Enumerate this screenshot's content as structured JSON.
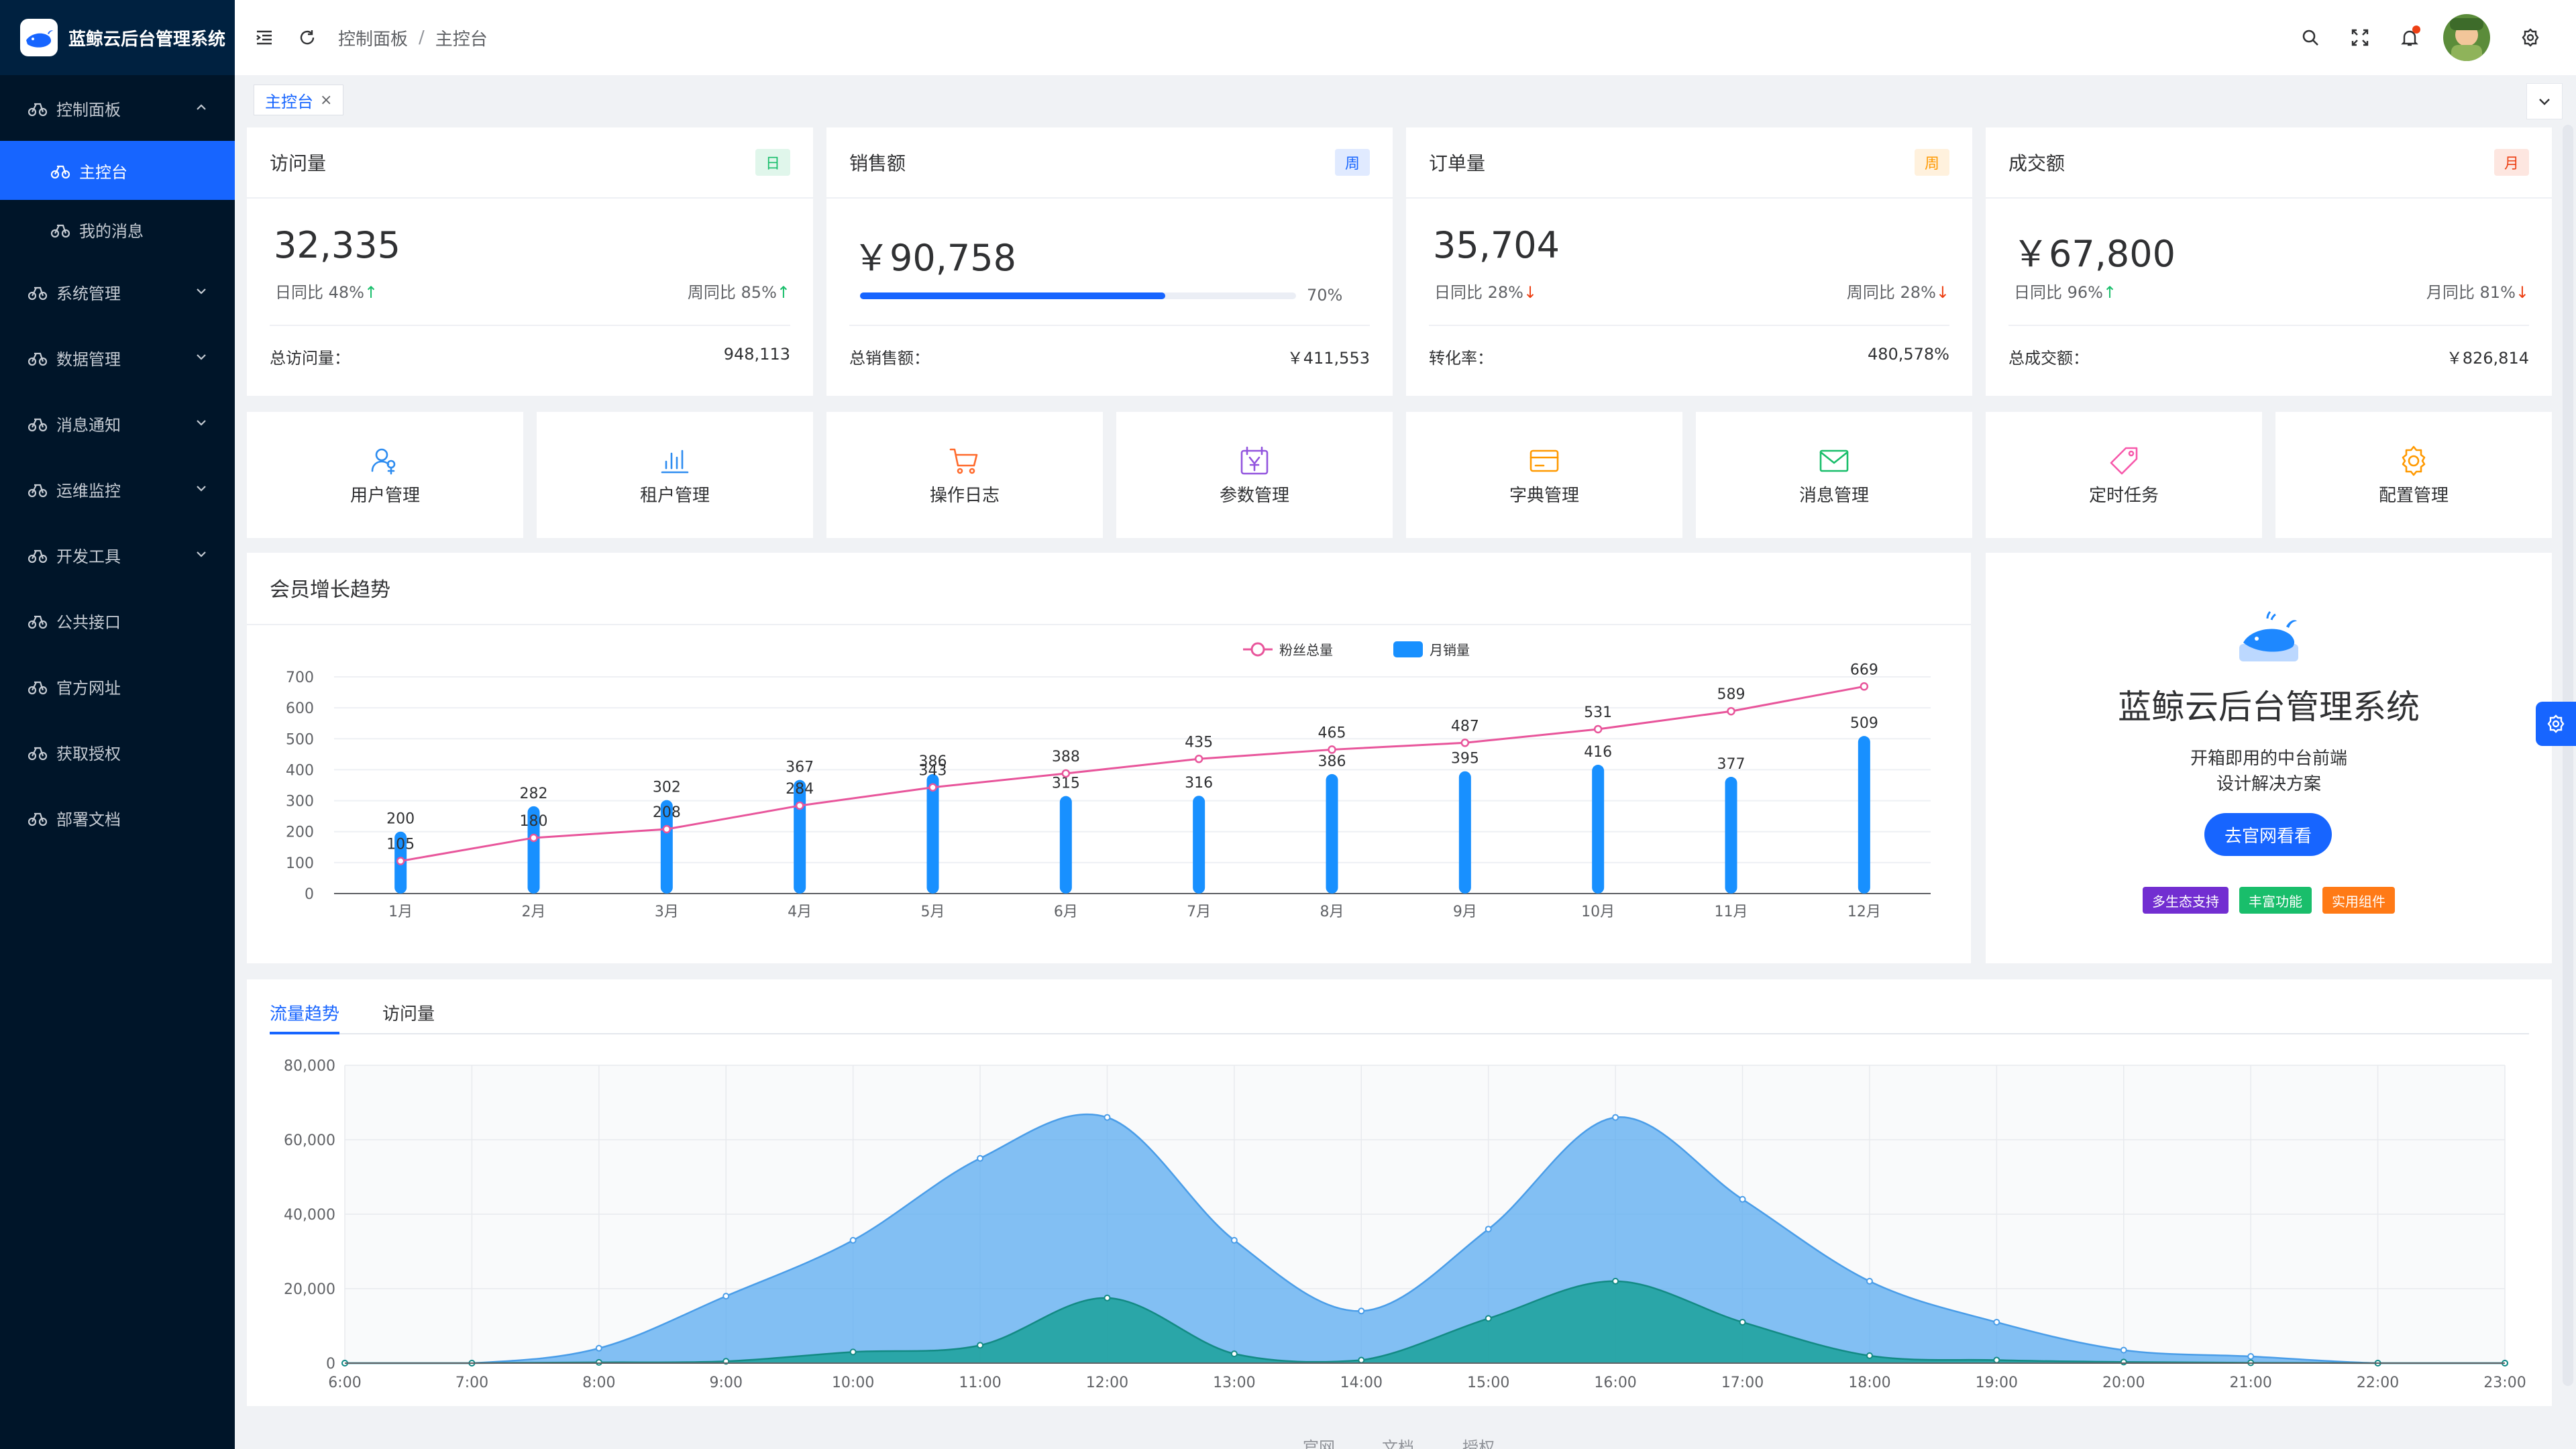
{
  "app": {
    "title": "蓝鲸云后台管理系统"
  },
  "sidebar": {
    "items": [
      {
        "label": "控制面板",
        "expanded": true,
        "children": [
          {
            "label": "主控台",
            "active": true
          },
          {
            "label": "我的消息",
            "active": false
          }
        ]
      },
      {
        "label": "系统管理",
        "expandable": true
      },
      {
        "label": "数据管理",
        "expandable": true
      },
      {
        "label": "消息通知",
        "expandable": true
      },
      {
        "label": "运维监控",
        "expandable": true
      },
      {
        "label": "开发工具",
        "expandable": true
      },
      {
        "label": "公共接口",
        "expandable": false
      },
      {
        "label": "官方网址",
        "expandable": false
      },
      {
        "label": "获取授权",
        "expandable": false
      },
      {
        "label": "部署文档",
        "expandable": false
      }
    ]
  },
  "breadcrumb": {
    "items": [
      "控制面板",
      "主控台"
    ],
    "separator": "/"
  },
  "tabs": {
    "active": "主控台",
    "close_symbol": "×"
  },
  "stats": [
    {
      "title": "访问量",
      "badge": "日",
      "badge_color": "#19be6b",
      "value": "32,335",
      "left_label": "日同比 48%",
      "left_trend": "↑",
      "right_label": "周同比 85%",
      "right_trend": "↑",
      "footer_label": "总访问量：",
      "footer_value": "948,113"
    },
    {
      "title": "销售额",
      "badge": "周",
      "badge_color": "#1765ff",
      "value": "￥90,758",
      "progress": 0.7,
      "progress_label": "70%",
      "footer_label": "总销售额：",
      "footer_value": "￥411,553"
    },
    {
      "title": "订单量",
      "badge": "周",
      "badge_color": "#ff9900",
      "value": "35,704",
      "left_label": "日同比 28%",
      "left_trend": "↓",
      "right_label": "周同比 28%",
      "right_trend": "↓",
      "footer_label": "转化率：",
      "footer_value": "480,578%"
    },
    {
      "title": "成交额",
      "badge": "月",
      "badge_color": "#ed4014",
      "value": "￥67,800",
      "left_label": "日同比 96%",
      "left_trend": "↑",
      "right_label": "月同比 81%",
      "right_trend": "↓",
      "footer_label": "总成交额：",
      "footer_value": "￥826,814"
    }
  ],
  "quick": [
    {
      "label": "用户管理",
      "icon": "user-group-icon",
      "color": "#2d8cf0"
    },
    {
      "label": "租户管理",
      "icon": "bar-chart-icon",
      "color": "#2d8cf0"
    },
    {
      "label": "操作日志",
      "icon": "cart-icon",
      "color": "#ff6a2c"
    },
    {
      "label": "参数管理",
      "icon": "calendar-yen-icon",
      "color": "#9254de"
    },
    {
      "label": "字典管理",
      "icon": "card-icon",
      "color": "#ff9900"
    },
    {
      "label": "消息管理",
      "icon": "mail-icon",
      "color": "#19be6b"
    },
    {
      "label": "定时任务",
      "icon": "tag-icon",
      "color": "#f759ab"
    },
    {
      "label": "配置管理",
      "icon": "gear-icon",
      "color": "#ff9900"
    }
  ],
  "member_chart": {
    "title": "会员增长趋势"
  },
  "promo": {
    "title": "蓝鲸云后台管理系统",
    "line1": "开箱即用的中台前端",
    "line2": "设计解决方案",
    "button": "去官网看看",
    "tags": [
      {
        "label": "多生态支持",
        "color": "#722ed1"
      },
      {
        "label": "丰富功能",
        "color": "#19be6b"
      },
      {
        "label": "实用组件",
        "color": "#ff7a16"
      }
    ]
  },
  "traffic": {
    "tabs": [
      "流量趋势",
      "访问量"
    ],
    "active_tab": "流量趋势"
  },
  "footer": {
    "links": [
      "官网",
      "文档",
      "授权"
    ]
  },
  "chart_data": [
    {
      "type": "bar",
      "title": "会员增长趋势",
      "categories": [
        "1月",
        "2月",
        "3月",
        "4月",
        "5月",
        "6月",
        "7月",
        "8月",
        "9月",
        "10月",
        "11月",
        "12月"
      ],
      "series": [
        {
          "name": "粉丝总量",
          "type": "line",
          "color": "#e8559b",
          "values": [
            105,
            180,
            208,
            284,
            343,
            388,
            435,
            465,
            487,
            531,
            589,
            669
          ]
        },
        {
          "name": "月销量",
          "type": "bar",
          "color": "#1890ff",
          "values": [
            200,
            282,
            302,
            367,
            386,
            315,
            316,
            386,
            395,
            416,
            377,
            509
          ]
        }
      ],
      "ylim": [
        0,
        700
      ],
      "yticks": [
        0,
        100,
        200,
        300,
        400,
        500,
        600,
        700
      ],
      "legend": "top-center",
      "grid": true
    },
    {
      "type": "area",
      "categories": [
        "6:00",
        "7:00",
        "8:00",
        "9:00",
        "10:00",
        "11:00",
        "12:00",
        "13:00",
        "14:00",
        "15:00",
        "16:00",
        "17:00",
        "18:00",
        "19:00",
        "20:00",
        "21:00",
        "22:00",
        "23:00"
      ],
      "series": [
        {
          "color": "#5aabf0",
          "values": [
            0,
            0,
            4000,
            18000,
            33000,
            55000,
            66000,
            33000,
            14000,
            36000,
            66000,
            44000,
            22000,
            11000,
            3500,
            1800,
            0,
            0
          ]
        },
        {
          "color": "#1ba19a",
          "values": [
            0,
            0,
            200,
            500,
            3000,
            4800,
            17500,
            2500,
            800,
            12000,
            22000,
            11000,
            2000,
            800,
            300,
            100,
            0,
            0
          ]
        }
      ],
      "ylim": [
        0,
        80000
      ],
      "yticks": [
        "0",
        "20,000",
        "40,000",
        "60,000",
        "80,000"
      ],
      "grid": true
    }
  ]
}
